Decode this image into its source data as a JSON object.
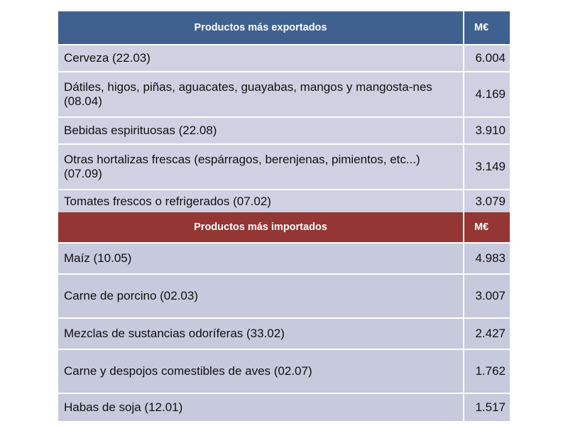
{
  "exports": {
    "header": "Productos más exportados",
    "unit": "M€",
    "rows": [
      {
        "name": "Cerveza (22.03)",
        "value": "6.004"
      },
      {
        "name": "Dátiles, higos, piñas, aguacates, guayabas, mangos y mangosta-nes (08.04)",
        "value": "4.169"
      },
      {
        "name": "Bebidas espirituosas (22.08)",
        "value": "3.910"
      },
      {
        "name": "Otras hortalizas frescas (espárragos, berenjenas, pimientos, etc...) (07.09)",
        "value": "3.149"
      },
      {
        "name": "Tomates frescos o refrigerados  (07.02)",
        "value": "3.079"
      }
    ]
  },
  "imports": {
    "header": "Productos más importados",
    "unit": "M€",
    "rows": [
      {
        "name": "Maíz (10.05)",
        "value": "4.983"
      },
      {
        "name": "Carne de porcino (02.03)",
        "value": "3.007"
      },
      {
        "name": "Mezclas de sustancias odoríferas  (33.02)",
        "value": "2.427"
      },
      {
        "name": "Carne y despojos comestibles de aves (02.07)",
        "value": "1.762"
      },
      {
        "name": "Habas de soja (12.01)",
        "value": "1.517"
      }
    ]
  },
  "colors": {
    "export_header": "#3f6190",
    "import_header": "#943634",
    "row_fill": "#cfd1e2"
  }
}
